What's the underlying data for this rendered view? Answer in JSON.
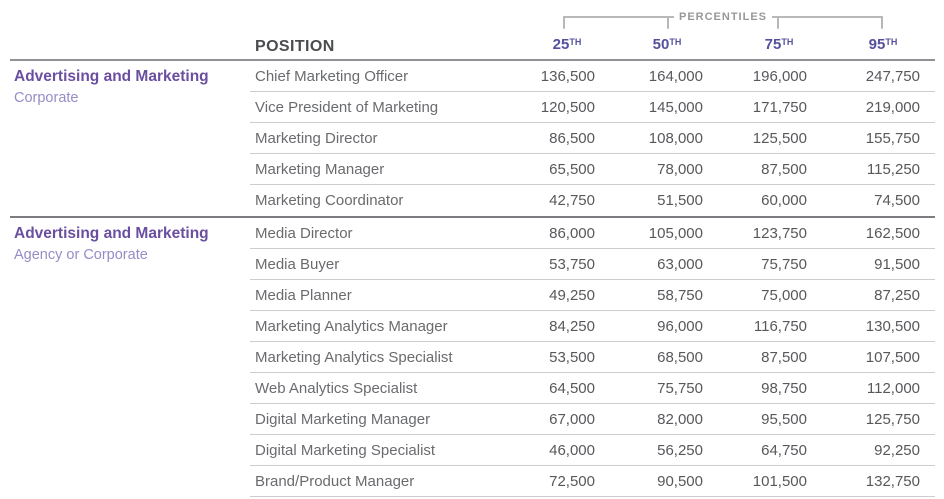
{
  "header": {
    "percentiles_label": "PERCENTILES",
    "position_label": "POSITION",
    "columns": [
      {
        "number": "25",
        "suffix": "TH"
      },
      {
        "number": "50",
        "suffix": "TH"
      },
      {
        "number": "75",
        "suffix": "TH"
      },
      {
        "number": "95",
        "suffix": "TH"
      }
    ]
  },
  "colors": {
    "accent_purple": "#6a4fa1",
    "light_purple": "#988cc7",
    "header_purple": "#55509e"
  },
  "sections": [
    {
      "category": "Advertising and Marketing",
      "subcategory": "Corporate",
      "rows": [
        {
          "position": "Chief Marketing Officer",
          "p25": "136,500",
          "p50": "164,000",
          "p75": "196,000",
          "p95": "247,750"
        },
        {
          "position": "Vice President of Marketing",
          "p25": "120,500",
          "p50": "145,000",
          "p75": "171,750",
          "p95": "219,000"
        },
        {
          "position": "Marketing Director",
          "p25": "86,500",
          "p50": "108,000",
          "p75": "125,500",
          "p95": "155,750"
        },
        {
          "position": "Marketing Manager",
          "p25": "65,500",
          "p50": "78,000",
          "p75": "87,500",
          "p95": "115,250"
        },
        {
          "position": "Marketing Coordinator",
          "p25": "42,750",
          "p50": "51,500",
          "p75": "60,000",
          "p95": "74,500"
        }
      ]
    },
    {
      "category": "Advertising and Marketing",
      "subcategory": "Agency or Corporate",
      "rows": [
        {
          "position": "Media Director",
          "p25": "86,000",
          "p50": "105,000",
          "p75": "123,750",
          "p95": "162,500"
        },
        {
          "position": "Media Buyer",
          "p25": "53,750",
          "p50": "63,000",
          "p75": "75,750",
          "p95": "91,500"
        },
        {
          "position": "Media Planner",
          "p25": "49,250",
          "p50": "58,750",
          "p75": "75,000",
          "p95": "87,250"
        },
        {
          "position": "Marketing Analytics Manager",
          "p25": "84,250",
          "p50": "96,000",
          "p75": "116,750",
          "p95": "130,500"
        },
        {
          "position": "Marketing Analytics Specialist",
          "p25": "53,500",
          "p50": "68,500",
          "p75": "87,500",
          "p95": "107,500"
        },
        {
          "position": "Web Analytics Specialist",
          "p25": "64,500",
          "p50": "75,750",
          "p75": "98,750",
          "p95": "112,000"
        },
        {
          "position": "Digital Marketing Manager",
          "p25": "67,000",
          "p50": "82,000",
          "p75": "95,500",
          "p95": "125,750"
        },
        {
          "position": "Digital Marketing Specialist",
          "p25": "46,000",
          "p50": "56,250",
          "p75": "64,750",
          "p95": "92,250"
        },
        {
          "position": "Brand/Product Manager",
          "p25": "72,500",
          "p50": "90,500",
          "p75": "101,500",
          "p95": "132,750"
        }
      ]
    }
  ]
}
